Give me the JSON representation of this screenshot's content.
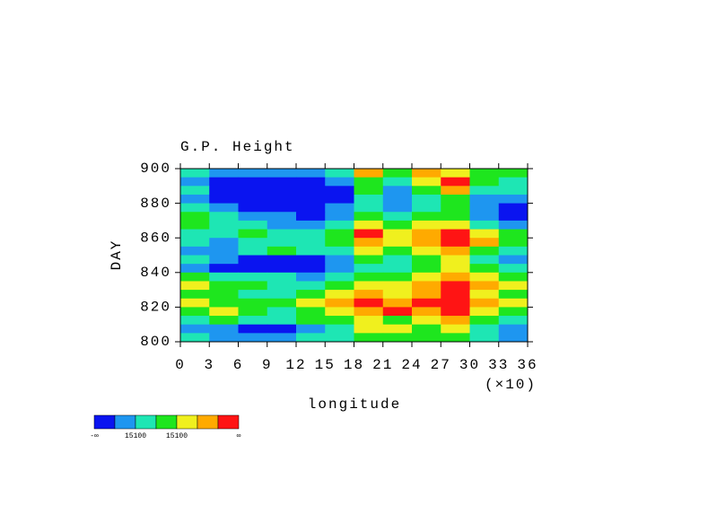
{
  "chart_data": {
    "type": "heatmap",
    "title": "G.P. Height",
    "x_label": "longitude",
    "x_scale_label": "(×10)",
    "y_label": "DAY",
    "xlim": [
      0,
      36
    ],
    "xticks": [
      0,
      3,
      6,
      9,
      12,
      15,
      18,
      21,
      24,
      27,
      30,
      33,
      36
    ],
    "ylim": [
      800,
      900
    ],
    "yticks": [
      800,
      820,
      840,
      860,
      880,
      900
    ],
    "x": [
      1.5,
      4.5,
      7.5,
      10.5,
      13.5,
      16.5,
      19.5,
      22.5,
      25.5,
      28.5,
      31.5,
      34.5
    ],
    "y": [
      897.5,
      892.5,
      887.5,
      882.5,
      877.5,
      872.5,
      867.5,
      862.5,
      857.5,
      852.5,
      847.5,
      842.5,
      837.5,
      832.5,
      827.5,
      822.5,
      817.5,
      812.5,
      807.5,
      802.5
    ],
    "z": [
      [
        2,
        1,
        1,
        1,
        1,
        2,
        5,
        3,
        5,
        4,
        3,
        3
      ],
      [
        1,
        0,
        0,
        0,
        0,
        1,
        3,
        2,
        4,
        6,
        3,
        2
      ],
      [
        2,
        0,
        0,
        0,
        0,
        0,
        3,
        1,
        3,
        5,
        2,
        2
      ],
      [
        1,
        0,
        0,
        0,
        0,
        0,
        2,
        1,
        2,
        3,
        1,
        1
      ],
      [
        2,
        1,
        0,
        0,
        0,
        1,
        2,
        1,
        2,
        3,
        1,
        0
      ],
      [
        3,
        2,
        1,
        1,
        0,
        1,
        3,
        2,
        3,
        3,
        1,
        0
      ],
      [
        3,
        2,
        2,
        1,
        1,
        2,
        4,
        3,
        4,
        4,
        2,
        1
      ],
      [
        2,
        2,
        3,
        2,
        2,
        3,
        6,
        4,
        5,
        6,
        4,
        3
      ],
      [
        2,
        1,
        2,
        2,
        2,
        3,
        5,
        4,
        5,
        6,
        5,
        3
      ],
      [
        1,
        1,
        2,
        3,
        2,
        2,
        4,
        3,
        4,
        5,
        3,
        2
      ],
      [
        2,
        1,
        0,
        0,
        0,
        1,
        3,
        2,
        3,
        4,
        2,
        1
      ],
      [
        1,
        0,
        0,
        0,
        0,
        1,
        2,
        2,
        3,
        4,
        3,
        2
      ],
      [
        3,
        2,
        2,
        2,
        1,
        2,
        3,
        3,
        4,
        5,
        4,
        3
      ],
      [
        4,
        3,
        3,
        2,
        2,
        3,
        4,
        4,
        5,
        6,
        5,
        4
      ],
      [
        3,
        3,
        2,
        2,
        3,
        4,
        5,
        4,
        5,
        6,
        4,
        3
      ],
      [
        4,
        3,
        3,
        3,
        4,
        5,
        6,
        5,
        6,
        6,
        5,
        4
      ],
      [
        3,
        4,
        3,
        2,
        3,
        4,
        5,
        6,
        5,
        6,
        4,
        3
      ],
      [
        2,
        3,
        2,
        2,
        3,
        3,
        4,
        3,
        4,
        5,
        3,
        2
      ],
      [
        1,
        1,
        0,
        0,
        1,
        2,
        4,
        4,
        3,
        4,
        2,
        1
      ],
      [
        2,
        1,
        1,
        1,
        2,
        2,
        3,
        3,
        3,
        3,
        2,
        1
      ]
    ],
    "colors": [
      "#0a14f0",
      "#1e96f0",
      "#1ee6b4",
      "#1ee61e",
      "#f0f01e",
      "#ffaa00",
      "#ff1414"
    ],
    "colorbar_labels": [
      "-∞",
      null,
      "15100",
      null,
      "15100",
      null,
      null,
      "∞"
    ]
  }
}
